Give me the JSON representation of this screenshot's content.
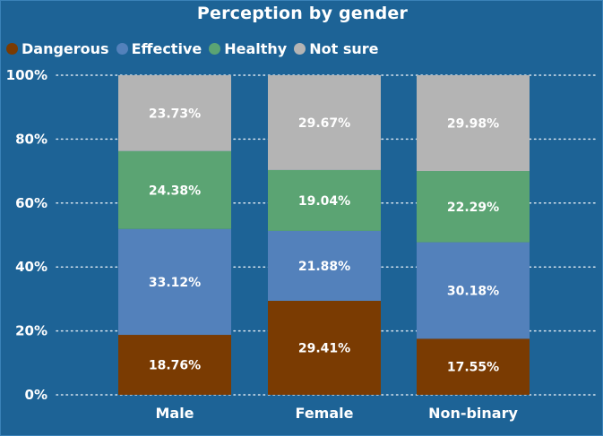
{
  "chart_data": {
    "type": "bar",
    "stacked": true,
    "title": "Perception by gender",
    "xlabel": "",
    "ylabel": "",
    "ylim": [
      0,
      100
    ],
    "yticks": [
      "0%",
      "20%",
      "40%",
      "60%",
      "80%",
      "100%"
    ],
    "ytick_values": [
      0,
      20,
      40,
      60,
      80,
      100
    ],
    "grid": true,
    "legend_position": "top-left",
    "categories": [
      "Male",
      "Female",
      "Non-binary"
    ],
    "series": [
      {
        "name": "Dangerous",
        "color": "#7a3b02",
        "values": [
          18.76,
          29.41,
          17.55
        ],
        "labels": [
          "18.76%",
          "29.41%",
          "17.55%"
        ]
      },
      {
        "name": "Effective",
        "color": "#5381bb",
        "values": [
          33.12,
          21.88,
          30.18
        ],
        "labels": [
          "33.12%",
          "21.88%",
          "30.18%"
        ]
      },
      {
        "name": "Healthy",
        "color": "#5ba473",
        "values": [
          24.38,
          19.04,
          22.29
        ],
        "labels": [
          "24.38%",
          "19.04%",
          "22.29%"
        ]
      },
      {
        "name": "Not sure",
        "color": "#b4b4b4",
        "values": [
          23.73,
          29.67,
          29.98
        ],
        "labels": [
          "23.73%",
          "29.67%",
          "29.98%"
        ]
      }
    ]
  }
}
